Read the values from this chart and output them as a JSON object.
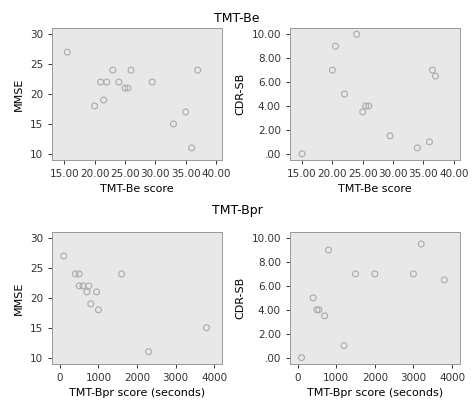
{
  "title_top": "TMT-Be",
  "title_bottom": "TMT-Bpr",
  "background_color": "#e8e8e8",
  "plot1": {
    "xlabel": "TMT-Be score",
    "ylabel": "MMSE",
    "xlim": [
      13,
      41
    ],
    "ylim": [
      9,
      31
    ],
    "xticks": [
      15.0,
      20.0,
      25.0,
      30.0,
      35.0,
      40.0
    ],
    "yticks": [
      10,
      15,
      20,
      25,
      30
    ],
    "x": [
      15.5,
      20.0,
      21.0,
      21.5,
      22.0,
      23.0,
      24.0,
      25.0,
      25.5,
      26.0,
      29.5,
      33.0,
      35.0,
      36.0,
      37.0
    ],
    "y": [
      27.0,
      18.0,
      22.0,
      19.0,
      22.0,
      24.0,
      22.0,
      21.0,
      21.0,
      24.0,
      22.0,
      15.0,
      17.0,
      11.0,
      24.0
    ]
  },
  "plot2": {
    "xlabel": "TMT-Be score",
    "ylabel": "CDR-SB",
    "xlim": [
      13,
      41
    ],
    "ylim": [
      -0.5,
      10.5
    ],
    "xticks": [
      15.0,
      20.0,
      25.0,
      30.0,
      35.0,
      40.0
    ],
    "yticks": [
      0.0,
      2.0,
      4.0,
      6.0,
      8.0,
      10.0
    ],
    "yticklabels": [
      ".00",
      "2.00",
      "4.00",
      "6.00",
      "8.00",
      "10.00"
    ],
    "x": [
      15.0,
      20.0,
      20.5,
      22.0,
      24.0,
      25.0,
      25.5,
      26.0,
      29.5,
      34.0,
      36.0,
      36.5,
      37.0
    ],
    "y": [
      0.0,
      7.0,
      9.0,
      5.0,
      10.0,
      3.5,
      4.0,
      4.0,
      1.5,
      0.5,
      1.0,
      7.0,
      6.5
    ]
  },
  "plot3": {
    "xlabel": "TMT-Bpr score (seconds)",
    "ylabel": "MMSE",
    "xlim": [
      -200,
      4200
    ],
    "ylim": [
      9,
      31
    ],
    "xticks": [
      0,
      1000,
      2000,
      3000,
      4000
    ],
    "yticks": [
      10,
      15,
      20,
      25,
      30
    ],
    "x": [
      100,
      400,
      500,
      500,
      600,
      700,
      750,
      800,
      950,
      1000,
      1600,
      2300,
      3800
    ],
    "y": [
      27.0,
      24.0,
      24.0,
      22.0,
      22.0,
      21.0,
      22.0,
      19.0,
      21.0,
      18.0,
      24.0,
      11.0,
      15.0
    ]
  },
  "plot4": {
    "xlabel": "TMT-Bpr score (seconds)",
    "ylabel": "CDR-SB",
    "xlim": [
      -200,
      4200
    ],
    "ylim": [
      -0.5,
      10.5
    ],
    "xticks": [
      0,
      1000,
      2000,
      3000,
      4000
    ],
    "yticks": [
      0.0,
      2.0,
      4.0,
      6.0,
      8.0,
      10.0
    ],
    "yticklabels": [
      ".00",
      "2.00",
      "4.00",
      "6.00",
      "8.00",
      "10.00"
    ],
    "x": [
      100,
      400,
      500,
      550,
      700,
      800,
      1200,
      1500,
      2000,
      3000,
      3200,
      3800
    ],
    "y": [
      0.0,
      5.0,
      4.0,
      4.0,
      3.5,
      9.0,
      1.0,
      7.0,
      7.0,
      7.0,
      9.5,
      6.5
    ]
  },
  "marker_color": "#aaaaaa",
  "marker_size": 18,
  "title_fontsize": 9,
  "label_fontsize": 8,
  "tick_fontsize": 7.5
}
